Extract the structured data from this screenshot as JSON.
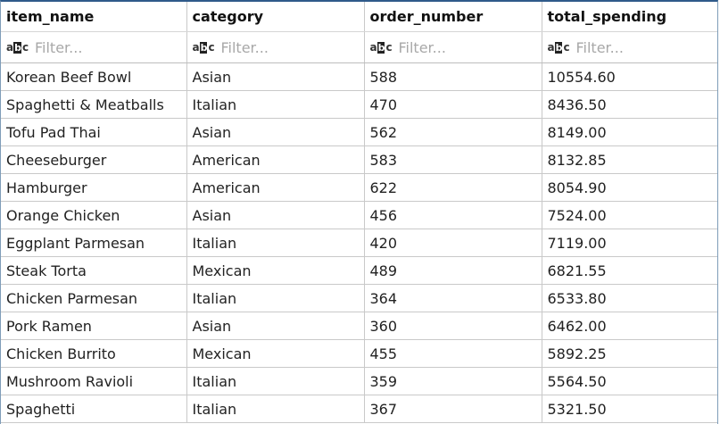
{
  "columns": [
    {
      "key": "item_name",
      "label": "item_name"
    },
    {
      "key": "category",
      "label": "category"
    },
    {
      "key": "order_number",
      "label": "order_number"
    },
    {
      "key": "total_spending",
      "label": "total_spending"
    }
  ],
  "filter": {
    "placeholder": "Filter...",
    "icon": "abc-filter-icon",
    "icon_text": [
      "a",
      "b",
      "c"
    ]
  },
  "rows": [
    [
      "Korean Beef Bowl",
      "Asian",
      "588",
      "10554.60"
    ],
    [
      "Spaghetti & Meatballs",
      "Italian",
      "470",
      "8436.50"
    ],
    [
      "Tofu Pad Thai",
      "Asian",
      "562",
      "8149.00"
    ],
    [
      "Cheeseburger",
      "American",
      "583",
      "8132.85"
    ],
    [
      "Hamburger",
      "American",
      "622",
      "8054.90"
    ],
    [
      "Orange Chicken",
      "Asian",
      "456",
      "7524.00"
    ],
    [
      "Eggplant Parmesan",
      "Italian",
      "420",
      "7119.00"
    ],
    [
      "Steak Torta",
      "Mexican",
      "489",
      "6821.55"
    ],
    [
      "Chicken Parmesan",
      "Italian",
      "364",
      "6533.80"
    ],
    [
      "Pork Ramen",
      "Asian",
      "360",
      "6462.00"
    ],
    [
      "Chicken Burrito",
      "Mexican",
      "455",
      "5892.25"
    ],
    [
      "Mushroom Ravioli",
      "Italian",
      "359",
      "5564.50"
    ],
    [
      "Spaghetti",
      "Italian",
      "367",
      "5321.50"
    ]
  ]
}
